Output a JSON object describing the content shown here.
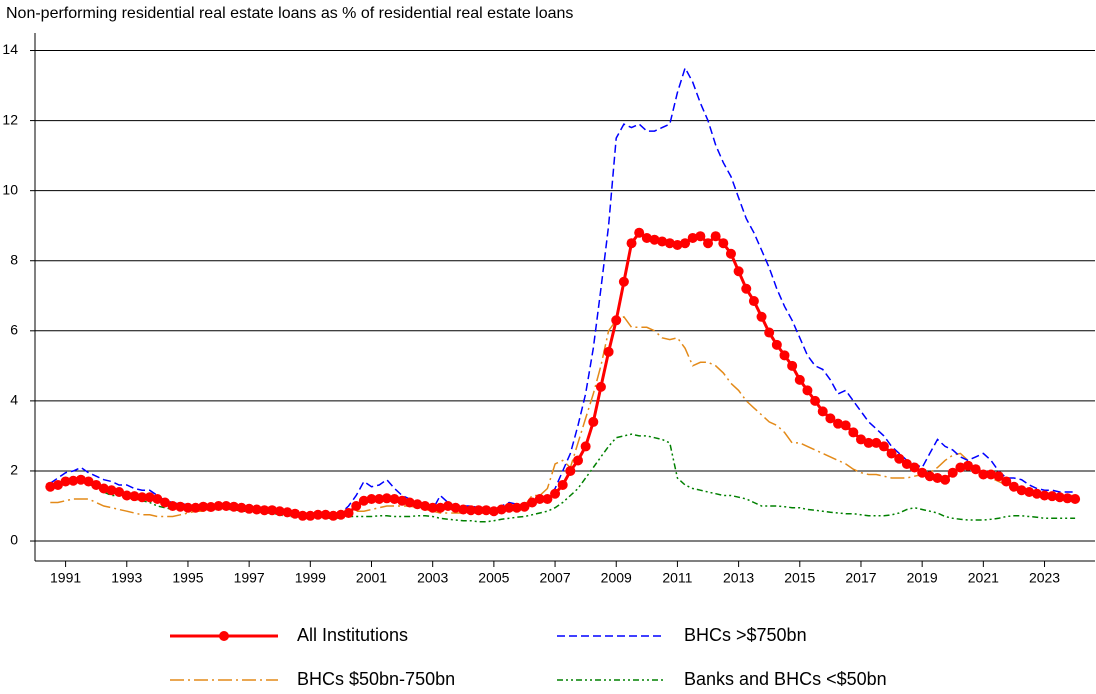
{
  "chart_data": {
    "type": "line",
    "title": "Non-performing residential real estate loans as % of residential real estate loans",
    "x": [
      1990.5,
      1990.75,
      1991,
      1991.25,
      1991.5,
      1991.75,
      1992,
      1992.25,
      1992.5,
      1992.75,
      1993,
      1993.25,
      1993.5,
      1993.75,
      1994,
      1994.25,
      1994.5,
      1994.75,
      1995,
      1995.25,
      1995.5,
      1995.75,
      1996,
      1996.25,
      1996.5,
      1996.75,
      1997,
      1997.25,
      1997.5,
      1997.75,
      1998,
      1998.25,
      1998.5,
      1998.75,
      1999,
      1999.25,
      1999.5,
      1999.75,
      2000,
      2000.25,
      2000.5,
      2000.75,
      2001,
      2001.25,
      2001.5,
      2001.75,
      2002,
      2002.25,
      2002.5,
      2002.75,
      2003,
      2003.25,
      2003.5,
      2003.75,
      2004,
      2004.25,
      2004.5,
      2004.75,
      2005,
      2005.25,
      2005.5,
      2005.75,
      2006,
      2006.25,
      2006.5,
      2006.75,
      2007,
      2007.25,
      2007.5,
      2007.75,
      2008,
      2008.25,
      2008.5,
      2008.75,
      2009,
      2009.25,
      2009.5,
      2009.75,
      2010,
      2010.25,
      2010.5,
      2010.75,
      2011,
      2011.25,
      2011.5,
      2011.75,
      2012,
      2012.25,
      2012.5,
      2012.75,
      2013,
      2013.25,
      2013.5,
      2013.75,
      2014,
      2014.25,
      2014.5,
      2014.75,
      2015,
      2015.25,
      2015.5,
      2015.75,
      2016,
      2016.25,
      2016.5,
      2016.75,
      2017,
      2017.25,
      2017.5,
      2017.75,
      2018,
      2018.25,
      2018.5,
      2018.75,
      2019,
      2019.25,
      2019.5,
      2019.75,
      2020,
      2020.25,
      2020.5,
      2020.75,
      2021,
      2021.25,
      2021.5,
      2021.75,
      2022,
      2022.25,
      2022.5,
      2022.75,
      2023,
      2023.25,
      2023.5,
      2023.75,
      2024
    ],
    "xlim": [
      1990,
      2024.65
    ],
    "xticks": [
      1991,
      1993,
      1995,
      1997,
      1999,
      2001,
      2003,
      2005,
      2007,
      2009,
      2011,
      2013,
      2015,
      2017,
      2019,
      2021,
      2023
    ],
    "ylim": [
      -0.57,
      14.5
    ],
    "yticks": [
      0,
      2,
      4,
      6,
      8,
      10,
      12,
      14
    ],
    "grid": true,
    "series": [
      {
        "name": "All Institutions",
        "color": "#ff0000",
        "line_style": "solid",
        "marker": "circle",
        "values": [
          1.55,
          1.6,
          1.7,
          1.72,
          1.75,
          1.7,
          1.6,
          1.5,
          1.45,
          1.4,
          1.3,
          1.28,
          1.25,
          1.25,
          1.2,
          1.1,
          1.0,
          0.98,
          0.95,
          0.95,
          0.98,
          0.97,
          1.0,
          1.0,
          0.98,
          0.95,
          0.92,
          0.9,
          0.88,
          0.88,
          0.85,
          0.82,
          0.78,
          0.72,
          0.72,
          0.75,
          0.75,
          0.72,
          0.75,
          0.8,
          1.0,
          1.15,
          1.2,
          1.2,
          1.22,
          1.2,
          1.15,
          1.1,
          1.05,
          1.0,
          0.95,
          0.95,
          1.0,
          0.95,
          0.9,
          0.88,
          0.88,
          0.88,
          0.85,
          0.9,
          0.95,
          0.95,
          0.98,
          1.1,
          1.2,
          1.2,
          1.35,
          1.6,
          2.0,
          2.3,
          2.7,
          3.4,
          4.4,
          5.4,
          6.3,
          7.4,
          8.5,
          8.8,
          8.65,
          8.6,
          8.55,
          8.5,
          8.45,
          8.5,
          8.65,
          8.7,
          8.5,
          8.7,
          8.5,
          8.2,
          7.7,
          7.2,
          6.85,
          6.4,
          5.95,
          5.6,
          5.3,
          5.0,
          4.6,
          4.3,
          4.0,
          3.7,
          3.5,
          3.35,
          3.3,
          3.1,
          2.9,
          2.8,
          2.8,
          2.7,
          2.5,
          2.35,
          2.2,
          2.1,
          1.95,
          1.85,
          1.8,
          1.75,
          1.95,
          2.1,
          2.15,
          2.05,
          1.9,
          1.9,
          1.85,
          1.7,
          1.55,
          1.45,
          1.4,
          1.35,
          1.3,
          1.28,
          1.25,
          1.22,
          1.2
        ]
      },
      {
        "name": "BHCs >$750bn",
        "color": "#0000ff",
        "line_style": "dashed",
        "values": [
          1.65,
          1.8,
          1.95,
          2.0,
          2.1,
          1.95,
          1.85,
          1.75,
          1.7,
          1.6,
          1.6,
          1.5,
          1.45,
          1.45,
          1.3,
          1.15,
          1.1,
          1.05,
          1.05,
          1.0,
          1.0,
          1.0,
          1.0,
          1.0,
          0.95,
          0.9,
          0.9,
          0.9,
          0.85,
          0.85,
          0.8,
          0.8,
          0.75,
          0.7,
          0.75,
          0.75,
          0.8,
          0.75,
          0.8,
          1.0,
          1.3,
          1.7,
          1.55,
          1.6,
          1.75,
          1.5,
          1.3,
          1.2,
          1.1,
          1.0,
          0.9,
          1.3,
          1.1,
          1.0,
          1.0,
          1.0,
          0.95,
          0.9,
          0.9,
          1.0,
          1.1,
          1.05,
          1.0,
          1.1,
          1.2,
          1.25,
          1.5,
          2.0,
          2.5,
          3.3,
          4.2,
          5.5,
          7.2,
          9.0,
          11.5,
          11.9,
          11.8,
          11.9,
          11.7,
          11.7,
          11.8,
          11.9,
          12.8,
          13.5,
          13.1,
          12.5,
          12.0,
          11.3,
          10.8,
          10.4,
          9.8,
          9.2,
          8.8,
          8.3,
          7.8,
          7.2,
          6.7,
          6.3,
          5.8,
          5.3,
          5.0,
          4.9,
          4.6,
          4.2,
          4.3,
          4.0,
          3.7,
          3.4,
          3.2,
          3.0,
          2.7,
          2.5,
          2.3,
          2.2,
          2.1,
          2.5,
          2.9,
          2.7,
          2.6,
          2.4,
          2.3,
          2.4,
          2.5,
          2.3,
          2.0,
          1.8,
          1.8,
          1.75,
          1.6,
          1.5,
          1.45,
          1.45,
          1.4,
          1.4,
          1.4
        ]
      },
      {
        "name": "BHCs $50bn-750bn",
        "color": "#e38a19",
        "line_style": "dashdot",
        "values": [
          1.1,
          1.1,
          1.15,
          1.2,
          1.2,
          1.2,
          1.1,
          1.0,
          0.95,
          0.9,
          0.85,
          0.8,
          0.75,
          0.75,
          0.7,
          0.7,
          0.7,
          0.75,
          0.8,
          0.85,
          0.85,
          0.9,
          0.95,
          0.95,
          0.95,
          0.9,
          0.85,
          0.85,
          0.85,
          0.8,
          0.8,
          0.75,
          0.7,
          0.7,
          0.7,
          0.7,
          0.7,
          0.7,
          0.75,
          0.8,
          0.85,
          0.85,
          0.9,
          0.95,
          1.0,
          1.0,
          1.0,
          1.0,
          0.95,
          0.9,
          0.85,
          0.8,
          0.8,
          0.8,
          0.8,
          0.8,
          0.8,
          0.8,
          0.8,
          0.85,
          0.9,
          0.95,
          1.0,
          1.3,
          1.3,
          1.5,
          2.2,
          2.3,
          2.1,
          2.8,
          3.5,
          4.2,
          5.0,
          6.0,
          6.3,
          6.4,
          6.1,
          6.1,
          6.1,
          6.0,
          5.8,
          5.75,
          5.8,
          5.5,
          5.0,
          5.1,
          5.1,
          5.0,
          4.8,
          4.5,
          4.3,
          4.0,
          3.8,
          3.6,
          3.4,
          3.3,
          3.1,
          2.8,
          2.8,
          2.7,
          2.6,
          2.5,
          2.4,
          2.3,
          2.2,
          2.05,
          1.95,
          1.9,
          1.9,
          1.85,
          1.8,
          1.8,
          1.8,
          1.85,
          1.9,
          1.95,
          2.1,
          2.3,
          2.45,
          2.5,
          2.3,
          2.1,
          1.95,
          1.8,
          1.7,
          1.6,
          1.5,
          1.45,
          1.4,
          1.35,
          1.35,
          1.3,
          1.3,
          1.3,
          1.3
        ]
      },
      {
        "name": "Banks and BHCs <$50bn",
        "color": "#008000",
        "line_style": "dashdotdot",
        "values": [
          1.55,
          1.6,
          1.65,
          1.7,
          1.7,
          1.65,
          1.5,
          1.4,
          1.3,
          1.3,
          1.25,
          1.2,
          1.15,
          1.1,
          1.0,
          0.95,
          0.9,
          0.9,
          0.9,
          0.9,
          0.9,
          0.9,
          0.9,
          0.9,
          0.9,
          0.85,
          0.85,
          0.8,
          0.8,
          0.8,
          0.75,
          0.7,
          0.7,
          0.7,
          0.7,
          0.65,
          0.65,
          0.65,
          0.65,
          0.7,
          0.7,
          0.7,
          0.7,
          0.72,
          0.72,
          0.7,
          0.7,
          0.7,
          0.72,
          0.72,
          0.7,
          0.65,
          0.62,
          0.6,
          0.58,
          0.58,
          0.55,
          0.55,
          0.58,
          0.62,
          0.65,
          0.68,
          0.7,
          0.75,
          0.8,
          0.85,
          0.95,
          1.1,
          1.3,
          1.5,
          1.8,
          2.1,
          2.4,
          2.7,
          2.95,
          3.0,
          3.05,
          3.0,
          3.0,
          2.95,
          2.9,
          2.8,
          1.8,
          1.6,
          1.5,
          1.45,
          1.4,
          1.35,
          1.3,
          1.3,
          1.25,
          1.2,
          1.1,
          1.0,
          1.0,
          1.0,
          0.98,
          0.95,
          0.95,
          0.9,
          0.88,
          0.85,
          0.82,
          0.8,
          0.78,
          0.78,
          0.75,
          0.72,
          0.72,
          0.72,
          0.75,
          0.8,
          0.9,
          0.95,
          0.9,
          0.85,
          0.8,
          0.7,
          0.65,
          0.62,
          0.6,
          0.6,
          0.6,
          0.62,
          0.65,
          0.7,
          0.72,
          0.72,
          0.7,
          0.68,
          0.65,
          0.65,
          0.65,
          0.65,
          0.65
        ]
      }
    ]
  }
}
